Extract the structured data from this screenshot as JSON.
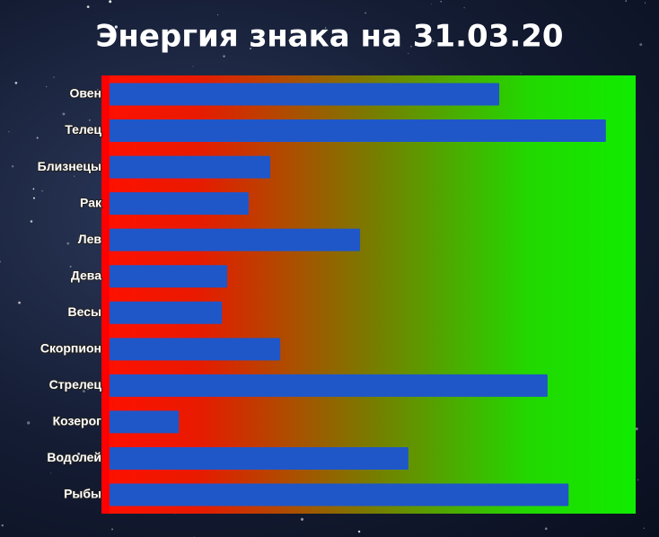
{
  "chart_data": {
    "type": "bar",
    "orientation": "horizontal",
    "title": "Энергия знака на 31.03.20",
    "categories": [
      "Овен",
      "Телец",
      "Близнецы",
      "Рак",
      "Лев",
      "Дева",
      "Весы",
      "Скорпион",
      "Стрелец",
      "Козерог",
      "Водолей",
      "Рыбы"
    ],
    "values": [
      74.2,
      94.5,
      30.6,
      26.5,
      47.7,
      22.4,
      21.4,
      32.5,
      83.4,
      13.2,
      56.9,
      87.4
    ],
    "color": "#1f57c9",
    "xlim": [
      0,
      100
    ]
  }
}
